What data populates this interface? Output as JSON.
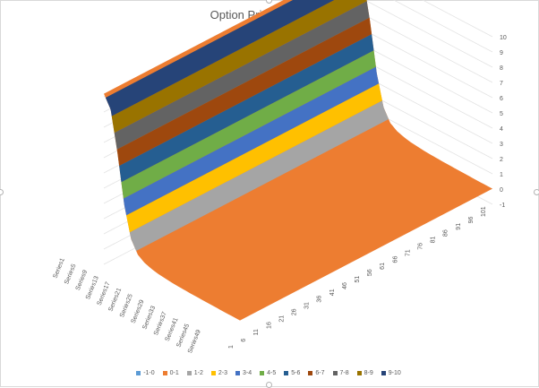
{
  "chart_data": {
    "type": "surface",
    "title": "Option Price - Forward",
    "z_axis": {
      "ticks": [
        "-1",
        "0",
        "1",
        "2",
        "3",
        "4",
        "5",
        "6",
        "7",
        "8",
        "9",
        "10"
      ],
      "range": [
        -1,
        10
      ]
    },
    "x_axis": {
      "ticks": [
        "1",
        "6",
        "11",
        "16",
        "21",
        "26",
        "31",
        "36",
        "41",
        "46",
        "51",
        "56",
        "61",
        "66",
        "71",
        "76",
        "81",
        "86",
        "91",
        "96",
        "101"
      ]
    },
    "series_axis": {
      "ticks": [
        "Series1",
        "Series5",
        "Series9",
        "Series13",
        "Series17",
        "Series21",
        "Series25",
        "Series29",
        "Series33",
        "Series37",
        "Series41",
        "Series45",
        "Series49"
      ]
    },
    "surface_profile": {
      "x": [
        1,
        6,
        11,
        16,
        21,
        26,
        31,
        36,
        41,
        46,
        51,
        56,
        61,
        66,
        71,
        76,
        81,
        86,
        91,
        96,
        101
      ],
      "z": [
        10.2,
        9.4,
        6.8,
        3.6,
        1.6,
        0.8,
        0.5,
        0.35,
        0.25,
        0.2,
        0.15,
        0.12,
        0.1,
        0.08,
        0.07,
        0.06,
        0.05,
        0.04,
        0.03,
        0.03,
        0.02
      ]
    },
    "legend": {
      "position": "bottom",
      "items": [
        {
          "label": "-1-0",
          "color": "#5b9bd5"
        },
        {
          "label": "0-1",
          "color": "#ed7d31"
        },
        {
          "label": "1-2",
          "color": "#a5a5a5"
        },
        {
          "label": "2-3",
          "color": "#ffc000"
        },
        {
          "label": "3-4",
          "color": "#4472c4"
        },
        {
          "label": "4-5",
          "color": "#70ad47"
        },
        {
          "label": "5-6",
          "color": "#255e91"
        },
        {
          "label": "6-7",
          "color": "#9e480e"
        },
        {
          "label": "7-8",
          "color": "#636363"
        },
        {
          "label": "8-9",
          "color": "#997300"
        },
        {
          "label": "9-10",
          "color": "#264478"
        }
      ]
    }
  }
}
